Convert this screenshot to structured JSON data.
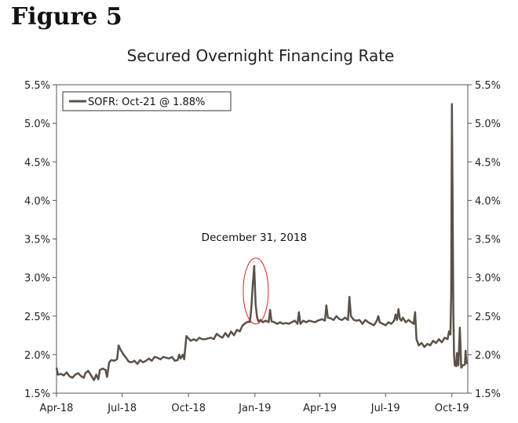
{
  "figure_label": "Figure 5",
  "chart_data": {
    "type": "line",
    "title": "Secured Overnight Financing Rate",
    "xlabel": "",
    "ylabel": "",
    "ylim": [
      1.5,
      5.5
    ],
    "y_ticks": [
      1.5,
      2.0,
      2.5,
      3.0,
      3.5,
      4.0,
      4.5,
      5.0,
      5.5
    ],
    "y_tick_labels": [
      "1.5%",
      "2.0%",
      "2.5%",
      "3.0%",
      "3.5%",
      "4.0%",
      "4.5%",
      "5.0%",
      "5.5%"
    ],
    "x_range_days": [
      0,
      570
    ],
    "x_ticks": [
      {
        "day": 0,
        "label": "Apr-18"
      },
      {
        "day": 91,
        "label": "Jul-18"
      },
      {
        "day": 183,
        "label": "Oct-18"
      },
      {
        "day": 275,
        "label": "Jan-19"
      },
      {
        "day": 365,
        "label": "Apr-19"
      },
      {
        "day": 456,
        "label": "Jul-19"
      },
      {
        "day": 548,
        "label": "Oct-19"
      }
    ],
    "legend": {
      "text": "SOFR: Oct-21 @ 1.88%",
      "placement": "top-left"
    },
    "annotation": {
      "text": "December 31, 2018",
      "day": 274,
      "value": 3.15
    },
    "series": [
      {
        "name": "SOFR",
        "color": "#5b5148",
        "points": [
          [
            0,
            1.83
          ],
          [
            2,
            1.74
          ],
          [
            6,
            1.75
          ],
          [
            10,
            1.73
          ],
          [
            14,
            1.77
          ],
          [
            18,
            1.72
          ],
          [
            22,
            1.7
          ],
          [
            26,
            1.74
          ],
          [
            30,
            1.76
          ],
          [
            34,
            1.72
          ],
          [
            38,
            1.7
          ],
          [
            40,
            1.76
          ],
          [
            44,
            1.79
          ],
          [
            48,
            1.73
          ],
          [
            52,
            1.67
          ],
          [
            55,
            1.74
          ],
          [
            58,
            1.68
          ],
          [
            60,
            1.8
          ],
          [
            64,
            1.82
          ],
          [
            68,
            1.8
          ],
          [
            70,
            1.71
          ],
          [
            73,
            1.9
          ],
          [
            76,
            1.93
          ],
          [
            80,
            1.92
          ],
          [
            84,
            1.94
          ],
          [
            86,
            2.12
          ],
          [
            89,
            2.06
          ],
          [
            93,
            2.0
          ],
          [
            97,
            1.95
          ],
          [
            100,
            1.91
          ],
          [
            104,
            1.9
          ],
          [
            108,
            1.92
          ],
          [
            112,
            1.88
          ],
          [
            116,
            1.93
          ],
          [
            120,
            1.9
          ],
          [
            124,
            1.92
          ],
          [
            128,
            1.95
          ],
          [
            132,
            1.92
          ],
          [
            136,
            1.97
          ],
          [
            140,
            1.96
          ],
          [
            144,
            1.94
          ],
          [
            148,
            1.97
          ],
          [
            152,
            1.96
          ],
          [
            156,
            1.95
          ],
          [
            160,
            1.97
          ],
          [
            164,
            1.92
          ],
          [
            168,
            1.93
          ],
          [
            170,
            2.0
          ],
          [
            172,
            1.95
          ],
          [
            175,
            2.0
          ],
          [
            177,
            1.94
          ],
          [
            180,
            2.24
          ],
          [
            183,
            2.21
          ],
          [
            186,
            2.18
          ],
          [
            190,
            2.2
          ],
          [
            194,
            2.18
          ],
          [
            198,
            2.22
          ],
          [
            202,
            2.2
          ],
          [
            206,
            2.2
          ],
          [
            210,
            2.21
          ],
          [
            214,
            2.22
          ],
          [
            218,
            2.2
          ],
          [
            222,
            2.27
          ],
          [
            226,
            2.24
          ],
          [
            230,
            2.22
          ],
          [
            234,
            2.28
          ],
          [
            238,
            2.23
          ],
          [
            242,
            2.3
          ],
          [
            246,
            2.25
          ],
          [
            250,
            2.32
          ],
          [
            254,
            2.3
          ],
          [
            258,
            2.38
          ],
          [
            262,
            2.41
          ],
          [
            266,
            2.43
          ],
          [
            268,
            2.42
          ],
          [
            270,
            2.6
          ],
          [
            272,
            2.9
          ],
          [
            274,
            3.15
          ],
          [
            276,
            2.65
          ],
          [
            278,
            2.48
          ],
          [
            280,
            2.43
          ],
          [
            283,
            2.45
          ],
          [
            286,
            2.42
          ],
          [
            290,
            2.44
          ],
          [
            294,
            2.42
          ],
          [
            296,
            2.58
          ],
          [
            298,
            2.43
          ],
          [
            302,
            2.42
          ],
          [
            306,
            2.4
          ],
          [
            310,
            2.42
          ],
          [
            314,
            2.4
          ],
          [
            318,
            2.41
          ],
          [
            322,
            2.4
          ],
          [
            326,
            2.42
          ],
          [
            330,
            2.44
          ],
          [
            334,
            2.4
          ],
          [
            336,
            2.55
          ],
          [
            338,
            2.4
          ],
          [
            342,
            2.44
          ],
          [
            346,
            2.42
          ],
          [
            350,
            2.44
          ],
          [
            354,
            2.43
          ],
          [
            358,
            2.42
          ],
          [
            362,
            2.44
          ],
          [
            365,
            2.45
          ],
          [
            368,
            2.46
          ],
          [
            372,
            2.44
          ],
          [
            374,
            2.64
          ],
          [
            376,
            2.48
          ],
          [
            380,
            2.47
          ],
          [
            384,
            2.45
          ],
          [
            388,
            2.5
          ],
          [
            392,
            2.46
          ],
          [
            396,
            2.45
          ],
          [
            400,
            2.48
          ],
          [
            404,
            2.45
          ],
          [
            406,
            2.75
          ],
          [
            408,
            2.5
          ],
          [
            412,
            2.45
          ],
          [
            416,
            2.44
          ],
          [
            420,
            2.45
          ],
          [
            424,
            2.4
          ],
          [
            428,
            2.45
          ],
          [
            432,
            2.42
          ],
          [
            436,
            2.4
          ],
          [
            440,
            2.38
          ],
          [
            444,
            2.44
          ],
          [
            446,
            2.5
          ],
          [
            448,
            2.42
          ],
          [
            452,
            2.4
          ],
          [
            456,
            2.38
          ],
          [
            460,
            2.42
          ],
          [
            464,
            2.4
          ],
          [
            468,
            2.44
          ],
          [
            470,
            2.52
          ],
          [
            472,
            2.45
          ],
          [
            474,
            2.59
          ],
          [
            476,
            2.46
          ],
          [
            478,
            2.44
          ],
          [
            480,
            2.48
          ],
          [
            484,
            2.42
          ],
          [
            488,
            2.45
          ],
          [
            492,
            2.42
          ],
          [
            495,
            2.4
          ],
          [
            497,
            2.55
          ],
          [
            499,
            2.2
          ],
          [
            502,
            2.12
          ],
          [
            506,
            2.15
          ],
          [
            510,
            2.1
          ],
          [
            514,
            2.14
          ],
          [
            518,
            2.12
          ],
          [
            522,
            2.18
          ],
          [
            526,
            2.15
          ],
          [
            530,
            2.2
          ],
          [
            534,
            2.16
          ],
          [
            538,
            2.22
          ],
          [
            542,
            2.2
          ],
          [
            544,
            2.3
          ],
          [
            546,
            2.26
          ],
          [
            547,
            2.8
          ],
          [
            548,
            5.25
          ],
          [
            549,
            4.0
          ],
          [
            550,
            2.55
          ],
          [
            551,
            2.0
          ],
          [
            552,
            1.86
          ],
          [
            554,
            1.85
          ],
          [
            555,
            2.02
          ],
          [
            557,
            1.86
          ],
          [
            559,
            2.35
          ],
          [
            561,
            1.83
          ],
          [
            563,
            1.86
          ],
          [
            566,
            1.87
          ],
          [
            567,
            2.05
          ],
          [
            568,
            1.9
          ],
          [
            570,
            1.88
          ]
        ]
      }
    ]
  }
}
